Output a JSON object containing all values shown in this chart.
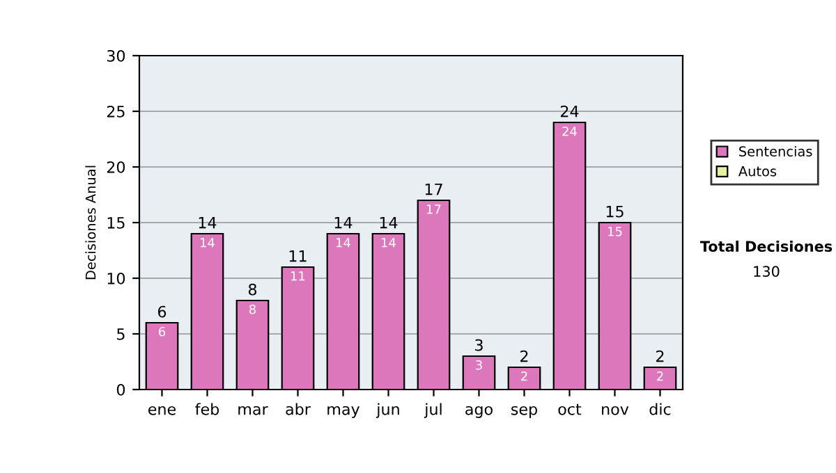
{
  "chart_data": {
    "type": "bar",
    "ylabel": "Decisiones Anual",
    "categories": [
      "ene",
      "feb",
      "mar",
      "abr",
      "may",
      "jun",
      "jul",
      "ago",
      "sep",
      "oct",
      "nov",
      "dic"
    ],
    "series": [
      {
        "name": "Sentencias",
        "color": "#dd77bb",
        "values": [
          6,
          14,
          8,
          11,
          14,
          14,
          17,
          3,
          2,
          24,
          15,
          2
        ]
      },
      {
        "name": "Autos",
        "color": "#e6f0a0",
        "values": [
          null,
          null,
          null,
          null,
          null,
          null,
          null,
          null,
          null,
          null,
          null,
          null
        ]
      }
    ],
    "stacked": true,
    "data_labels": true,
    "totals": [
      "6",
      "14",
      "8",
      "11",
      "14",
      "14",
      "17",
      "3",
      "2",
      "24",
      "15",
      "2"
    ],
    "ylim": [
      0,
      30
    ],
    "yticks": [
      0,
      5,
      10,
      15,
      20,
      25,
      30
    ],
    "grid": "y",
    "legend": "right",
    "annotations": [
      "Total Decisiones",
      "130"
    ]
  }
}
